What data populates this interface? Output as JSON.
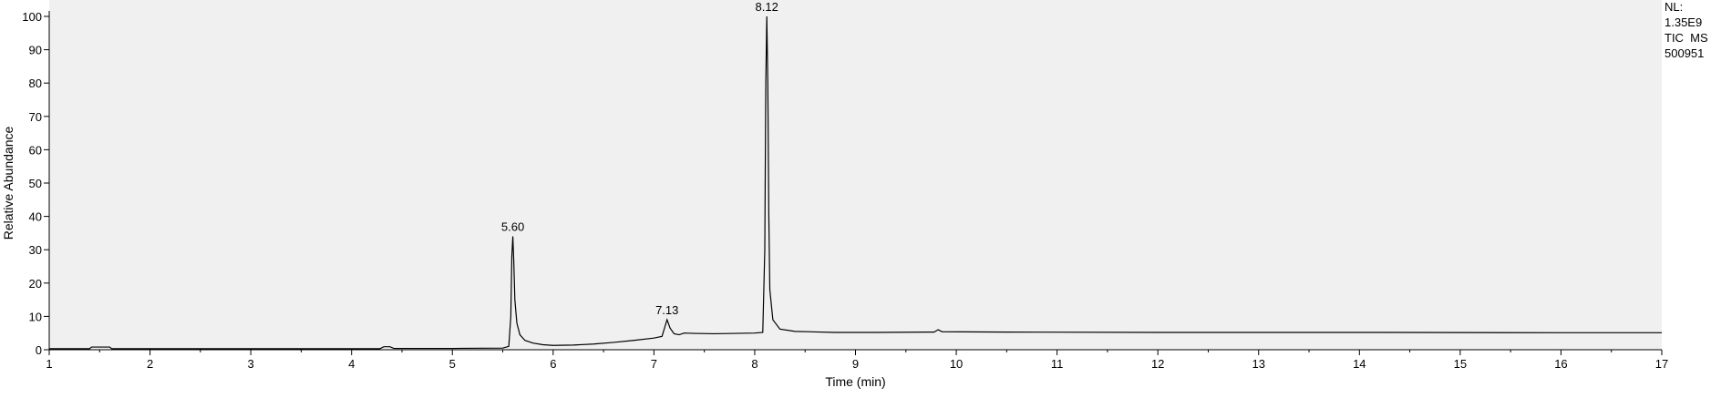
{
  "chart_data": {
    "type": "line",
    "xlabel": "Time (min)",
    "ylabel": "Relative Abundance",
    "xlim": [
      1,
      17
    ],
    "ylim": [
      0,
      100
    ],
    "x_ticks": [
      "1",
      "2",
      "3",
      "4",
      "5",
      "6",
      "7",
      "8",
      "9",
      "10",
      "11",
      "12",
      "13",
      "14",
      "15",
      "16",
      "17"
    ],
    "y_ticks": [
      "0",
      "10",
      "20",
      "30",
      "40",
      "50",
      "60",
      "70",
      "80",
      "90",
      "100"
    ],
    "grid": false,
    "legend": "none",
    "colors": {
      "plot_background": "#f0f0f0",
      "line": "#000000",
      "axis": "#000000"
    },
    "info_text": [
      "NL:",
      "1.35E9",
      "TIC  MS",
      "500951"
    ],
    "peak_labels": [
      {
        "x": 5.6,
        "y": 34,
        "label": "5.60"
      },
      {
        "x": 7.13,
        "y": 9,
        "label": "7.13"
      },
      {
        "x": 8.12,
        "y": 100,
        "label": "8.12"
      }
    ],
    "series": [
      {
        "points": [
          [
            1.0,
            0.3
          ],
          [
            1.4,
            0.3
          ],
          [
            1.42,
            0.8
          ],
          [
            1.6,
            0.8
          ],
          [
            1.62,
            0.3
          ],
          [
            4.28,
            0.3
          ],
          [
            4.32,
            0.9
          ],
          [
            4.38,
            0.9
          ],
          [
            4.42,
            0.4
          ],
          [
            5.0,
            0.4
          ],
          [
            5.5,
            0.5
          ],
          [
            5.56,
            1.0
          ],
          [
            5.58,
            10.0
          ],
          [
            5.59,
            28.0
          ],
          [
            5.6,
            34.0
          ],
          [
            5.61,
            26.0
          ],
          [
            5.62,
            15.0
          ],
          [
            5.64,
            8.0
          ],
          [
            5.67,
            4.5
          ],
          [
            5.72,
            2.8
          ],
          [
            5.8,
            2.0
          ],
          [
            5.9,
            1.5
          ],
          [
            6.0,
            1.3
          ],
          [
            6.2,
            1.4
          ],
          [
            6.4,
            1.7
          ],
          [
            6.6,
            2.2
          ],
          [
            6.8,
            2.8
          ],
          [
            7.0,
            3.5
          ],
          [
            7.08,
            4.0
          ],
          [
            7.11,
            7.0
          ],
          [
            7.13,
            9.0
          ],
          [
            7.16,
            6.5
          ],
          [
            7.2,
            4.8
          ],
          [
            7.25,
            4.5
          ],
          [
            7.3,
            5.0
          ],
          [
            7.4,
            4.9
          ],
          [
            7.6,
            4.8
          ],
          [
            8.0,
            5.0
          ],
          [
            8.08,
            5.2
          ],
          [
            8.1,
            30.0
          ],
          [
            8.11,
            80.0
          ],
          [
            8.12,
            100.0
          ],
          [
            8.13,
            80.0
          ],
          [
            8.14,
            40.0
          ],
          [
            8.15,
            18.0
          ],
          [
            8.18,
            9.0
          ],
          [
            8.25,
            6.2
          ],
          [
            8.4,
            5.5
          ],
          [
            8.8,
            5.2
          ],
          [
            9.2,
            5.2
          ],
          [
            9.78,
            5.3
          ],
          [
            9.82,
            6.0
          ],
          [
            9.86,
            5.4
          ],
          [
            10.5,
            5.3
          ],
          [
            12.0,
            5.2
          ],
          [
            14.0,
            5.2
          ],
          [
            16.0,
            5.1
          ],
          [
            17.0,
            5.1
          ]
        ]
      }
    ]
  }
}
